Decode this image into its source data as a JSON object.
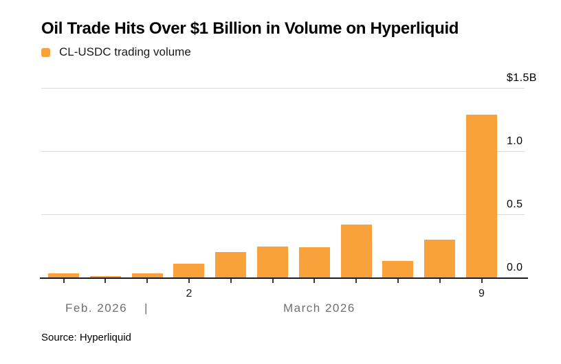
{
  "header": {
    "title": "Oil Trade Hits Over $1 Billion in Volume on Hyperliquid"
  },
  "legend": {
    "label": "CL-USDC trading volume",
    "swatch_color": "#F9A23B"
  },
  "source": {
    "text": "Source: Hyperliquid"
  },
  "chart_data": {
    "type": "bar",
    "title": "Oil Trade Hits Over $1 Billion in Volume on Hyperliquid",
    "series": [
      {
        "name": "CL-USDC trading volume",
        "values": [
          0.03,
          0.01,
          0.035,
          0.11,
          0.2,
          0.245,
          0.24,
          0.42,
          0.13,
          0.3,
          1.29
        ]
      }
    ],
    "x_tick_labels": [
      "",
      "",
      "",
      "2",
      "",
      "",
      "",
      "",
      "",
      "",
      "9"
    ],
    "x_month_labels": [
      "Feb. 2026",
      "|",
      "March 2026"
    ],
    "y_axis": {
      "labels": [
        "$1.5B",
        "1.0",
        "0.5",
        "0.0"
      ],
      "values": [
        1.5,
        1.0,
        0.5,
        0.0
      ]
    },
    "ylim": [
      0,
      1.5
    ],
    "bar_color": "#F9A23B",
    "grid": "horizontal",
    "gridline_values": [
      1.5,
      1.0,
      0.5
    ],
    "legend_position": "top-left",
    "y_label_position": "right"
  }
}
